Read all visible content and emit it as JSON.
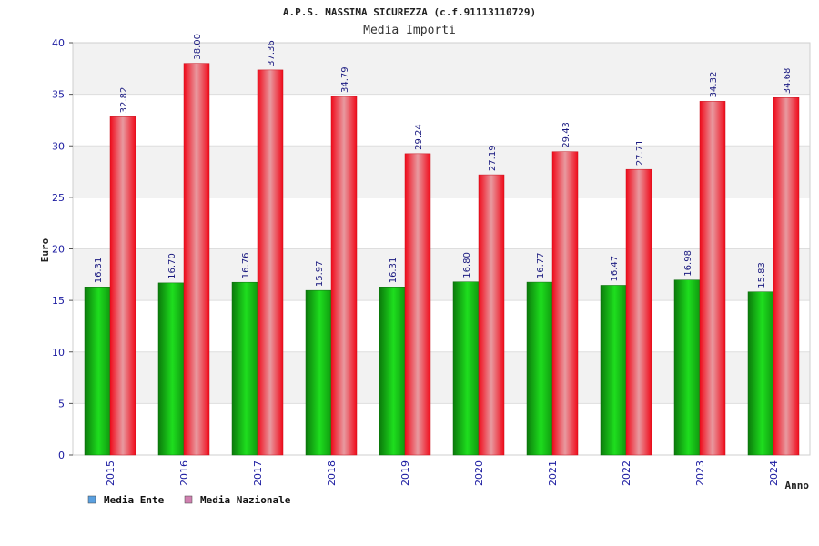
{
  "chart_data": {
    "type": "bar",
    "title": "A.P.S. MASSIMA SICUREZZA (c.f.91113110729)",
    "subtitle": "Media Importi",
    "xlabel": "Anno",
    "ylabel": "Euro",
    "ylim": [
      0,
      40
    ],
    "yticks": [
      0,
      5,
      10,
      15,
      20,
      25,
      30,
      35,
      40
    ],
    "categories": [
      "2015",
      "2016",
      "2017",
      "2018",
      "2019",
      "2020",
      "2021",
      "2022",
      "2023",
      "2024"
    ],
    "series": [
      {
        "name": "Media Ente",
        "color": "#1fc41f",
        "legend_color": "#5aa0e0",
        "values": [
          16.31,
          16.7,
          16.76,
          15.97,
          16.31,
          16.8,
          16.77,
          16.47,
          16.98,
          15.83
        ],
        "labels": [
          "16.31",
          "16.70",
          "16.76",
          "15.97",
          "16.31",
          "16.80",
          "16.77",
          "16.47",
          "16.98",
          "15.83"
        ]
      },
      {
        "name": "Media Nazionale",
        "color": "#e8202e",
        "legend_color": "#d080b0",
        "values": [
          32.82,
          38.0,
          37.36,
          34.79,
          29.24,
          27.19,
          29.43,
          27.71,
          34.32,
          34.68
        ],
        "labels": [
          "32.82",
          "38.00",
          "37.36",
          "34.79",
          "29.24",
          "27.19",
          "29.43",
          "27.71",
          "34.32",
          "34.68"
        ]
      }
    ],
    "grid": true,
    "legend_position": "bottom-left"
  }
}
